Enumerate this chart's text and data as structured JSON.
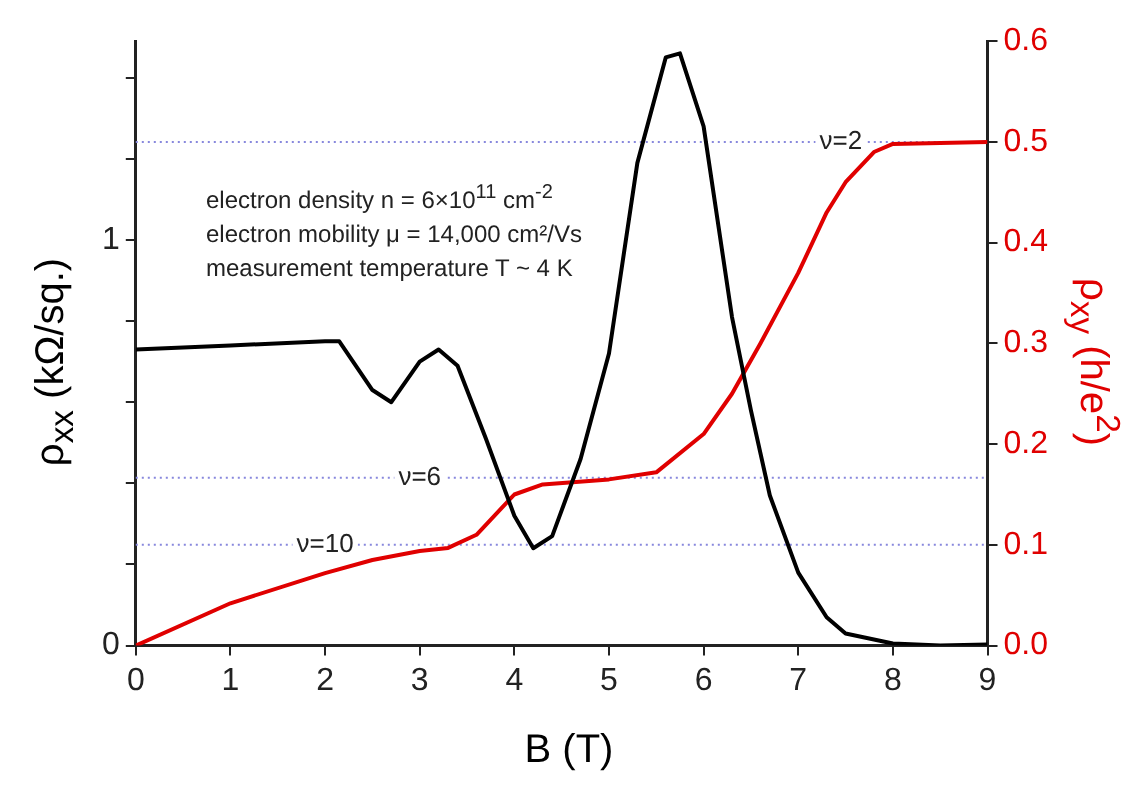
{
  "chart_data": {
    "type": "line",
    "xlabel": "B (T)",
    "ylabel": "ρ$_{xx}$ (kΩ/sq.)",
    "y2label": "ρ$_{xy}$ (h/e$^{2}$)",
    "annotations": [
      "electron density n = 6×10$^{11}$ cm$^{-2}$",
      "electron mobility μ = 14,000 cm²/Vs",
      "measurement temperature T ~ 4 K",
      {
        "text": "ν=2",
        "x": 7.45,
        "y": 1.242
      },
      {
        "text": "ν=6",
        "x": 3.0,
        "y": 0.414
      },
      {
        "text": "ν=10",
        "x": 2.0,
        "y": 0.248
      }
    ],
    "xlim": [
      0,
      9
    ],
    "xticks": [
      0,
      1,
      2,
      3,
      4,
      5,
      6,
      7,
      8,
      9
    ],
    "ylim": [
      0,
      1.49
    ],
    "yticks": [
      0,
      {
        "value": 0.2,
        "label": null
      },
      {
        "value": 0.4,
        "label": null
      },
      {
        "value": 0.6,
        "label": null
      },
      {
        "value": 0.8,
        "label": null
      },
      1,
      {
        "value": 1.2,
        "label": null
      },
      {
        "value": 1.4,
        "label": null
      }
    ],
    "y2lim": [
      0,
      0.6
    ],
    "y2ticks": [
      {
        "value": 0,
        "label": "0.0"
      },
      0.1,
      0.2,
      0.3,
      0.4,
      0.5,
      0.6
    ],
    "grid": false,
    "legend": false,
    "marker": "none",
    "line_style": "solid",
    "ref_lines": [
      {
        "axis": "y2",
        "value": 0.5,
        "color": "#8888dd",
        "line_style": "dotted"
      },
      {
        "axis": "y2",
        "value": 0.1667,
        "color": "#8888dd",
        "line_style": "dotted"
      },
      {
        "axis": "y2",
        "value": 0.1,
        "color": "#8888dd",
        "line_style": "dotted"
      }
    ],
    "series": [
      {
        "color": "#000000",
        "x": [
          0,
          1,
          2,
          2.15,
          2.5,
          2.7,
          3,
          3.2,
          3.4,
          3.7,
          4,
          4.2,
          4.4,
          4.7,
          5,
          5.3,
          5.6,
          5.75,
          6,
          6.3,
          6.5,
          6.7,
          7,
          7.3,
          7.5,
          8,
          8.5,
          9
        ],
        "values": [
          0.73,
          0.74,
          0.75,
          0.75,
          0.63,
          0.6,
          0.7,
          0.73,
          0.69,
          0.51,
          0.32,
          0.24,
          0.27,
          0.46,
          0.72,
          1.19,
          1.45,
          1.46,
          1.28,
          0.81,
          0.58,
          0.37,
          0.18,
          0.07,
          0.03,
          0.005,
          0,
          0.003
        ]
      },
      {
        "color": "#e00000",
        "axis": "y2",
        "x": [
          0,
          1,
          2,
          2.5,
          3,
          3.3,
          3.6,
          4,
          4.3,
          5,
          5.5,
          6,
          6.3,
          6.6,
          7,
          7.3,
          7.5,
          7.8,
          8,
          9
        ],
        "values": [
          0,
          0.042,
          0.072,
          0.085,
          0.094,
          0.097,
          0.11,
          0.15,
          0.16,
          0.165,
          0.172,
          0.21,
          0.25,
          0.3,
          0.37,
          0.43,
          0.46,
          0.49,
          0.498,
          0.5
        ]
      }
    ]
  }
}
